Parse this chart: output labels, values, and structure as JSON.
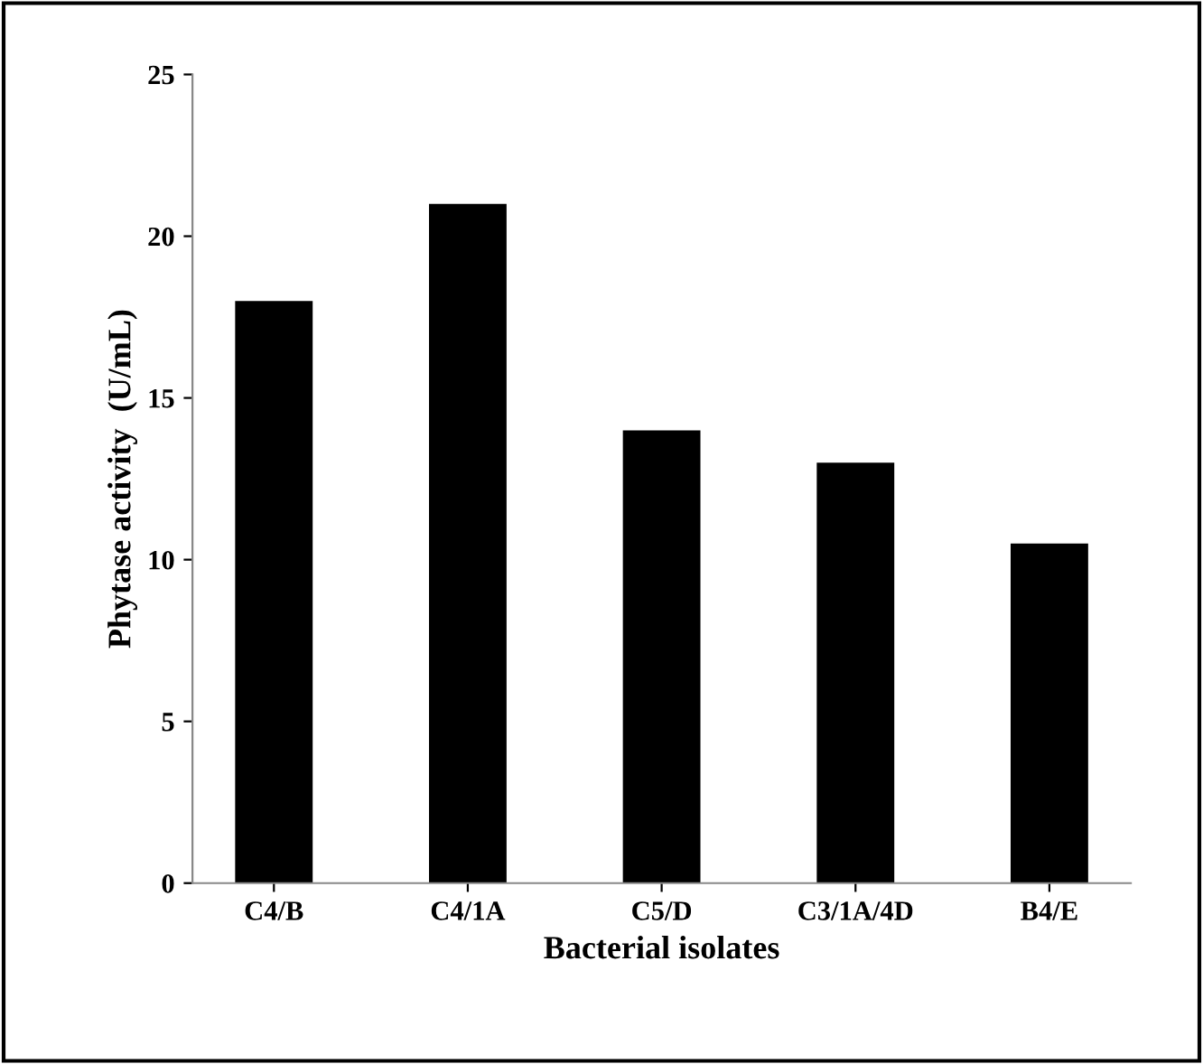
{
  "chart_data": {
    "type": "bar",
    "xlabel": "Bacterial isolates",
    "ylabel": "Phytase activity  (U/mL)",
    "categories": [
      "C4/B",
      "C4/1A",
      "C5/D",
      "C3/1A/4D",
      "B4/E"
    ],
    "values": [
      18,
      21,
      14,
      13,
      10.5
    ],
    "color": "#000000",
    "ylim": [
      0,
      25
    ],
    "yticks": [
      0,
      5,
      10,
      15,
      20,
      25
    ],
    "grid": false,
    "legend": false
  }
}
